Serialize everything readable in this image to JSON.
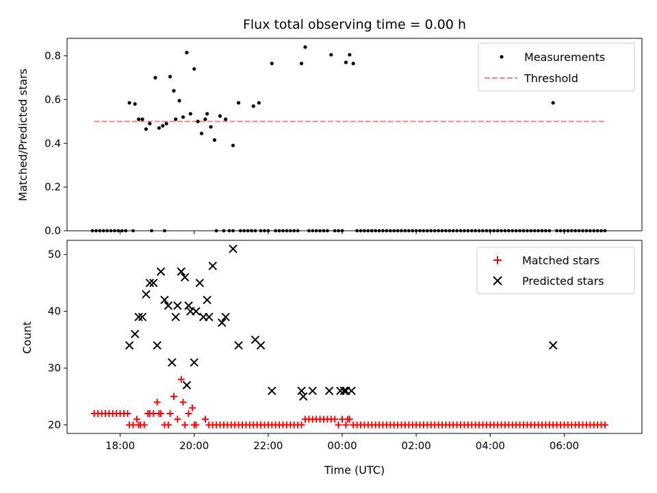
{
  "chart_data": {
    "title": "Flux total observing time = 0.00 h",
    "x_axis": {
      "label": "Time (UTC)",
      "unit": "hours since 18:00 UTC",
      "ticks": [
        {
          "value": 0,
          "label": "18:00"
        },
        {
          "value": 2,
          "label": "20:00"
        },
        {
          "value": 4,
          "label": "22:00"
        },
        {
          "value": 6,
          "label": "00:00"
        },
        {
          "value": 8,
          "label": "02:00"
        },
        {
          "value": 10,
          "label": "04:00"
        },
        {
          "value": 12,
          "label": "06:00"
        }
      ]
    },
    "panels": [
      {
        "type": "scatter",
        "ylabel": "Matched/Predicted stars",
        "ylim": [
          0,
          0.88
        ],
        "yticks": [
          {
            "value": 0,
            "label": "0.0"
          },
          {
            "value": 0.2,
            "label": "0.2"
          },
          {
            "value": 0.4,
            "label": "0.4"
          },
          {
            "value": 0.6,
            "label": "0.6"
          },
          {
            "value": 0.8,
            "label": "0.8"
          }
        ],
        "legend": {
          "placement": "top-right"
        },
        "series": [
          {
            "name": "Measurements",
            "marker": "dot",
            "color": "#000000",
            "x": [
              0.25,
              0.4,
              0.5,
              0.6,
              0.7,
              0.8,
              0.95,
              1.05,
              1.15,
              1.25,
              1.35,
              1.45,
              1.5,
              1.6,
              1.7,
              1.8,
              1.9,
              2.0,
              2.1,
              2.2,
              2.3,
              2.35,
              2.45,
              2.55,
              2.7,
              2.85,
              3.05,
              3.2,
              3.6,
              3.75,
              4.1,
              4.9,
              5.0,
              5.7,
              6.1,
              6.2,
              6.3,
              11.7
            ],
            "y": [
              0.585,
              0.58,
              0.51,
              0.51,
              0.465,
              0.49,
              0.7,
              0.47,
              0.48,
              0.49,
              0.705,
              0.64,
              0.51,
              0.595,
              0.52,
              0.815,
              0.535,
              0.74,
              0.5,
              0.445,
              0.51,
              0.535,
              0.475,
              0.415,
              0.525,
              0.51,
              0.39,
              0.585,
              0.57,
              0.585,
              0.765,
              0.765,
              0.84,
              0.805,
              0.77,
              0.805,
              0.765,
              0.585
            ]
          },
          {
            "name": "Threshold",
            "marker": "dashed-line",
            "color": "#ff7f7f",
            "x": [
              -0.7,
              13.1
            ],
            "y": [
              0.5,
              0.5
            ]
          }
        ],
        "zero_rows": [
          {
            "from": -0.75,
            "to": 0.2,
            "step": 0.1
          },
          {
            "from": 0.35,
            "to": 0.4,
            "step": 0.1
          },
          {
            "from": 0.85,
            "to": 0.85,
            "step": 0.1
          },
          {
            "from": 1.2,
            "to": 1.2,
            "step": 0.1
          },
          {
            "from": 2.6,
            "to": 2.6,
            "step": 0.1
          },
          {
            "from": 2.8,
            "to": 2.8,
            "step": 0.1
          },
          {
            "from": 2.95,
            "to": 3.05,
            "step": 0.1
          },
          {
            "from": 3.25,
            "to": 3.65,
            "step": 0.1
          },
          {
            "from": 3.8,
            "to": 4.05,
            "step": 0.1
          },
          {
            "from": 4.2,
            "to": 4.85,
            "step": 0.1
          },
          {
            "from": 5.1,
            "to": 5.65,
            "step": 0.1
          },
          {
            "from": 5.8,
            "to": 6.05,
            "step": 0.1
          },
          {
            "from": 6.4,
            "to": 11.6,
            "step": 0.1
          },
          {
            "from": 11.8,
            "to": 13.1,
            "step": 0.1
          }
        ]
      },
      {
        "type": "scatter",
        "ylabel": "Count",
        "ylim": [
          18.5,
          52.5
        ],
        "yticks": [
          {
            "value": 20,
            "label": "20"
          },
          {
            "value": 30,
            "label": "30"
          },
          {
            "value": 40,
            "label": "40"
          },
          {
            "value": 50,
            "label": "50"
          }
        ],
        "legend": {
          "placement": "top-right"
        },
        "series": [
          {
            "name": "Matched stars",
            "marker": "plus",
            "color": "#ff0000",
            "x": [
              -0.7,
              -0.6,
              -0.5,
              -0.4,
              -0.3,
              -0.2,
              -0.1,
              0.0,
              0.1,
              0.2,
              0.25,
              0.35,
              0.45,
              0.5,
              0.55,
              0.65,
              0.75,
              0.8,
              0.9,
              1.0,
              1.05,
              1.1,
              1.2,
              1.3,
              1.35,
              1.45,
              1.55,
              1.65,
              1.7,
              1.75,
              1.85,
              1.95,
              2.0,
              2.05,
              2.3,
              2.4,
              2.5,
              2.6,
              2.7,
              2.8,
              2.9,
              3.0,
              3.1,
              3.2,
              3.3,
              3.4,
              3.5,
              3.6,
              3.7,
              3.8,
              3.9,
              4.0,
              4.1,
              4.2,
              4.3,
              4.4,
              4.5,
              4.6,
              4.7,
              4.8,
              4.9,
              5.0,
              5.1,
              5.2,
              5.3,
              5.4,
              5.5,
              5.6,
              5.7,
              5.8,
              5.9,
              6.0,
              6.1,
              6.15,
              6.2,
              6.3,
              6.4,
              6.5,
              6.6,
              6.7,
              6.8,
              6.9,
              7.0,
              7.1,
              7.2,
              7.3,
              7.4,
              7.5,
              7.6,
              7.7,
              7.8,
              7.9,
              8.0,
              8.1,
              8.2,
              8.3,
              8.4,
              8.5,
              8.6,
              8.7,
              8.8,
              8.9,
              9.0,
              9.1,
              9.2,
              9.3,
              9.4,
              9.5,
              9.6,
              9.7,
              9.8,
              9.9,
              10.0,
              10.1,
              10.2,
              10.3,
              10.4,
              10.5,
              10.6,
              10.7,
              10.8,
              10.9,
              11.0,
              11.1,
              11.2,
              11.3,
              11.4,
              11.5,
              11.6,
              11.7,
              11.8,
              11.9,
              12.0,
              12.1,
              12.2,
              12.3,
              12.4,
              12.5,
              12.6,
              12.7,
              12.8,
              12.9,
              13.0,
              13.1
            ],
            "y": [
              22,
              22,
              22,
              22,
              22,
              22,
              22,
              22,
              22,
              22,
              20,
              20,
              21,
              20,
              20,
              20,
              22,
              22,
              22,
              24,
              22,
              22,
              20,
              20,
              22,
              25,
              21,
              28,
              24,
              20,
              22,
              23,
              20,
              20,
              21,
              20,
              20,
              20,
              20,
              20,
              20,
              20,
              20,
              20,
              20,
              20,
              20,
              20,
              20,
              20,
              20,
              20,
              20,
              20,
              20,
              20,
              20,
              20,
              20,
              20,
              20,
              21,
              21,
              21,
              21,
              21,
              21,
              21,
              21,
              21,
              20,
              21,
              20,
              21,
              21,
              20,
              20,
              20,
              20,
              20,
              20,
              20,
              20,
              20,
              20,
              20,
              20,
              20,
              20,
              20,
              20,
              20,
              20,
              20,
              20,
              20,
              20,
              20,
              20,
              20,
              20,
              20,
              20,
              20,
              20,
              20,
              20,
              20,
              20,
              20,
              20,
              20,
              20,
              20,
              20,
              20,
              20,
              20,
              20,
              20,
              20,
              20,
              20,
              20,
              20,
              20,
              20,
              20,
              20,
              20,
              20,
              20,
              20,
              20,
              20,
              20,
              20,
              20,
              20,
              20,
              20,
              20,
              20,
              20
            ]
          },
          {
            "name": "Predicted stars",
            "marker": "x",
            "color": "#000000",
            "x": [
              0.25,
              0.4,
              0.5,
              0.6,
              0.7,
              0.8,
              0.9,
              1.0,
              1.1,
              1.2,
              1.3,
              1.4,
              1.5,
              1.55,
              1.65,
              1.75,
              1.8,
              1.85,
              1.9,
              2.0,
              2.05,
              2.15,
              2.25,
              2.35,
              2.4,
              2.5,
              2.75,
              2.85,
              3.05,
              3.2,
              3.65,
              3.8,
              4.1,
              4.9,
              4.95,
              5.2,
              5.65,
              5.95,
              6.05,
              6.1,
              6.25,
              11.7
            ],
            "y": [
              34,
              36,
              39,
              39,
              43,
              45,
              45,
              34,
              47,
              42,
              41,
              31,
              39,
              41,
              47,
              46,
              27,
              41,
              40,
              31,
              40,
              45,
              39,
              42,
              39,
              48,
              38,
              39,
              51,
              34,
              35,
              34,
              26,
              26,
              25,
              26,
              26,
              26,
              26,
              26,
              26,
              34
            ]
          }
        ]
      }
    ]
  }
}
